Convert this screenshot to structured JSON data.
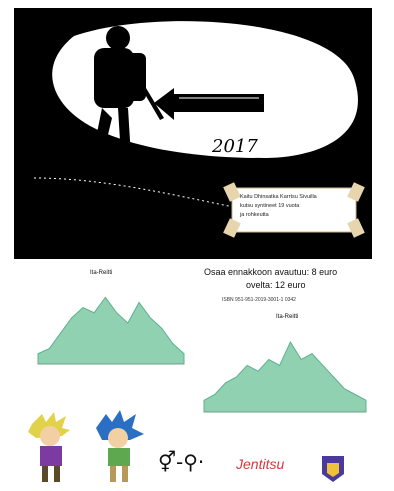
{
  "cover": {
    "year": "2017",
    "arrow_text": "~~~",
    "scroll_lines": [
      "Kaitu Dhinsatka Karrtsu Sivuilla",
      "kutsu syntineet 19 vuota",
      "ja rohkeutta"
    ]
  },
  "info": {
    "price_line1": "Osaa ennakkoon avautuu: 8 euro",
    "price_line2": "ovelta: 12 euro",
    "note": "ISBN 951-951-2019-3001-1 0342"
  },
  "profiles": [
    {
      "title": "Ita-Reitti",
      "values": [
        2,
        3,
        6,
        9,
        11,
        10,
        13,
        10,
        8,
        12,
        9,
        7,
        4,
        2
      ]
    },
    {
      "title": "Ita-Reitti",
      "values": [
        2,
        3,
        5,
        6,
        8,
        7,
        9,
        8,
        12,
        9,
        10,
        8,
        6,
        4,
        3,
        2
      ]
    }
  ],
  "logos": {
    "brand": "Jentitsu"
  },
  "colors": {
    "profile_fill": "#8fd1b0",
    "profile_stroke": "#5fb08f",
    "brand_red": "#d23a3a",
    "emblem": "#4a3a9a"
  }
}
